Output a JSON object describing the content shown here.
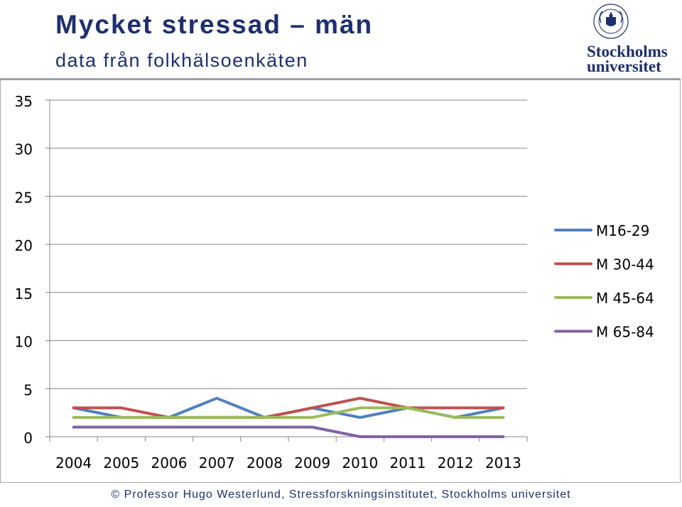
{
  "header": {
    "title": "Mycket stressad – män",
    "subtitle": "data från folkhälsoenkäten"
  },
  "logo": {
    "line1": "Stockholms",
    "line2": "universitet",
    "seal_text": "UNIVERSITET STOCKHOLMS"
  },
  "footer": {
    "copyright_symbol": "©",
    "text": "Professor Hugo Westerlund, Stressforskningsinstitutet, Stockholms universitet"
  },
  "colors": {
    "brand": "#1e2f6e",
    "grid": "#868686"
  },
  "chart_data": {
    "type": "line",
    "title": "",
    "xlabel": "",
    "ylabel": "",
    "categories": [
      "2004",
      "2005",
      "2006",
      "2007",
      "2008",
      "2009",
      "2010",
      "2011",
      "2012",
      "2013"
    ],
    "ylim": [
      0,
      35
    ],
    "yticks": [
      0,
      5,
      10,
      15,
      20,
      25,
      30,
      35
    ],
    "grid": true,
    "legend_position": "right",
    "series": [
      {
        "name": "M16-29",
        "color": "#4f81bd",
        "values": [
          3,
          2,
          2,
          4,
          2,
          3,
          2,
          3,
          2,
          3
        ]
      },
      {
        "name": "M 30-44",
        "color": "#c0504d",
        "values": [
          3,
          3,
          2,
          2,
          2,
          3,
          4,
          3,
          3,
          3
        ]
      },
      {
        "name": "M 45-64",
        "color": "#9bbb59",
        "values": [
          2,
          2,
          2,
          2,
          2,
          2,
          3,
          3,
          2,
          2
        ]
      },
      {
        "name": "M 65-84",
        "color": "#8064a2",
        "values": [
          1,
          1,
          1,
          1,
          1,
          1,
          0,
          0,
          0,
          0
        ]
      }
    ]
  }
}
